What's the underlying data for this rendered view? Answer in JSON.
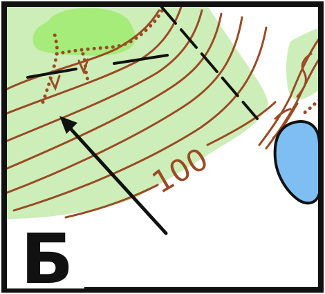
{
  "map": {
    "panel_letter": "Б",
    "contour_label": "100",
    "colors": {
      "frame": "#111111",
      "contour": "#9a4a24",
      "open_land": "#cdeeb8",
      "bright_green": "#a6ec7a",
      "water": "#7fbef2",
      "water_outline": "#111111",
      "arrow": "#111111",
      "paper": "#ffffff"
    },
    "icons": [
      "north-arrow-icon"
    ]
  }
}
